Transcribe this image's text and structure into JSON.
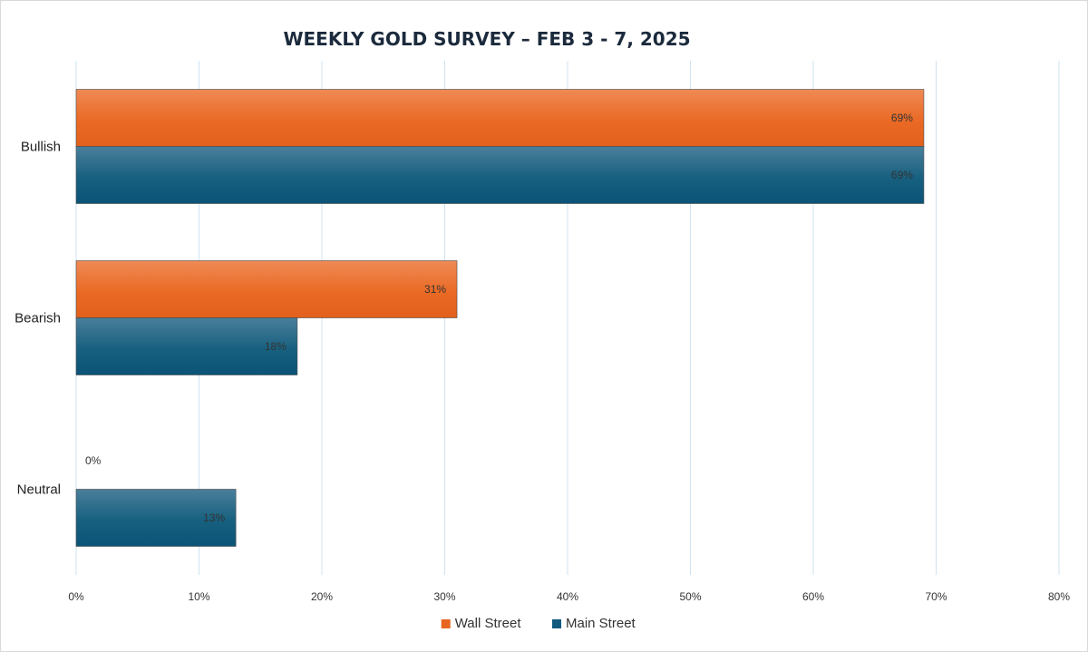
{
  "chart_data": {
    "type": "bar",
    "orientation": "horizontal",
    "title": "WEEKLY GOLD SURVEY – FEB 3 - 7, 2025",
    "categories": [
      "Bullish",
      "Bearish",
      "Neutral"
    ],
    "series": [
      {
        "name": "Wall Street",
        "values": [
          69,
          31,
          0
        ],
        "labels": [
          "69%",
          "31%",
          "0%"
        ],
        "color": "#e8651f"
      },
      {
        "name": "Main Street",
        "values": [
          69,
          18,
          13
        ],
        "labels": [
          "69%",
          "18%",
          "13%"
        ],
        "color": "#10597f"
      }
    ],
    "xlim": [
      0,
      80
    ],
    "xticks": [
      "0%",
      "10%",
      "20%",
      "30%",
      "40%",
      "50%",
      "60%",
      "70%",
      "80%"
    ],
    "xlabel": "",
    "ylabel": "",
    "grid": "vertical",
    "legend": "bottom"
  }
}
